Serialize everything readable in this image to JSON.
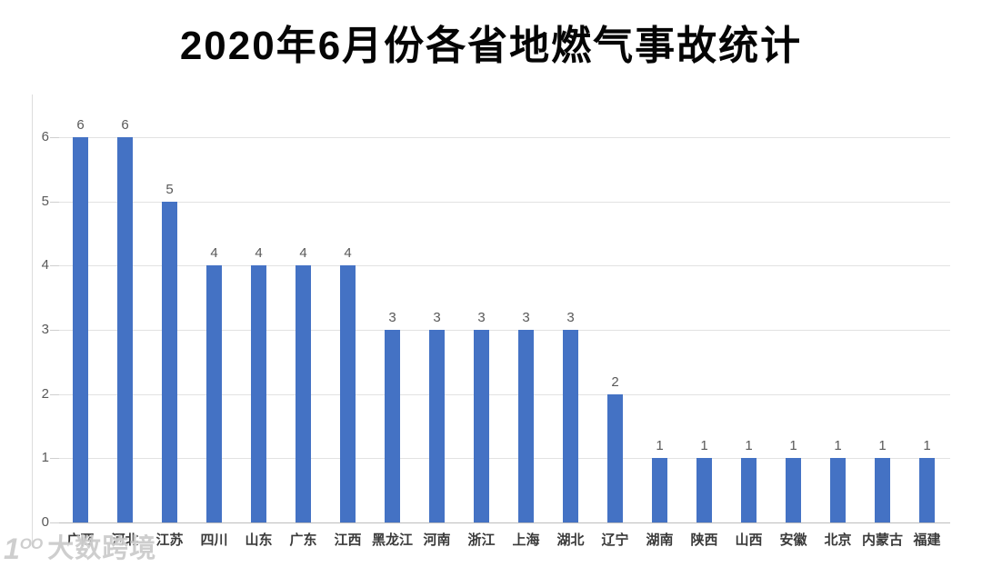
{
  "title": "2020年6月份各省地燃气事故统计",
  "watermark": {
    "logo_icon": "ten-powered-logo-icon",
    "logo_text": "1",
    "logo_superscript": "OO",
    "text": "大数跨境"
  },
  "chart_data": {
    "type": "bar",
    "title": "2020年6月份各省地燃气事故统计",
    "categories": [
      "广西",
      "河北",
      "江苏",
      "四川",
      "山东",
      "广东",
      "江西",
      "黑龙江",
      "河南",
      "浙江",
      "上海",
      "湖北",
      "辽宁",
      "湖南",
      "陕西",
      "山西",
      "安徽",
      "北京",
      "内蒙古",
      "福建"
    ],
    "values": [
      6,
      6,
      5,
      4,
      4,
      4,
      4,
      3,
      3,
      3,
      3,
      3,
      2,
      1,
      1,
      1,
      1,
      1,
      1,
      1
    ],
    "data_labels_shown": true,
    "xlabel": "",
    "ylabel": "",
    "ylim": [
      0,
      6
    ],
    "yticks": [
      0,
      1,
      2,
      3,
      4,
      5,
      6
    ],
    "grid": true,
    "legend_position": "none",
    "colors": {
      "bar": "#4472C4",
      "data_label": "#595959",
      "y_tick_label": "#595959",
      "category_label": "#3a3a3a",
      "gridline": "#e2e2e2",
      "baseline": "#bdbdbd",
      "title": "#050505",
      "background": "#ffffff"
    }
  }
}
